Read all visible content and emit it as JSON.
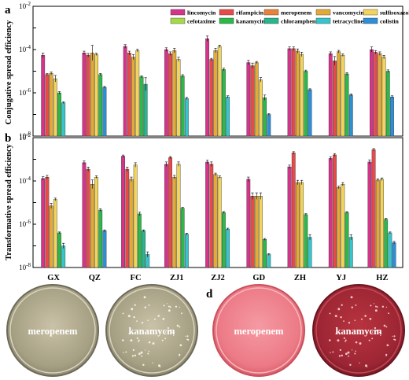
{
  "panels": {
    "a": {
      "letter": "a",
      "ylabel": "Conjugative spread efficiency"
    },
    "b": {
      "letter": "b",
      "ylabel": "Transformative spread efficiency"
    },
    "c": {
      "letter": "c",
      "plates": [
        "meropenem",
        "kanamycin"
      ]
    },
    "d": {
      "letter": "d",
      "plates": [
        "meropenem",
        "kanamycin"
      ]
    }
  },
  "colors": {
    "lincomycin": "#d6338a",
    "rifampicin": "#e84a4a",
    "meropenem": "#e8823a",
    "vancomycin": "#e3aa36",
    "sulfisoxazole": "#f2d45c",
    "cefotaxime": "#a6d94a",
    "kanamycin": "#2db84a",
    "chloramphenicol": "#28b58f",
    "tetracycline": "#36c5cc",
    "colistin": "#2e8fd6"
  },
  "chart_data": [
    {
      "type": "bar",
      "panel": "a",
      "y_scale": "log",
      "ylim": [
        1e-08,
        0.01
      ],
      "yticks": [
        "10^-8",
        "10^-6",
        "10^-4",
        "10^-2"
      ],
      "ylabel": "Conjugative spread efficiency",
      "categories": [
        "GX",
        "QZ",
        "FC",
        "ZJ1",
        "ZJ2",
        "GD",
        "ZH",
        "YJ",
        "HZ"
      ],
      "legend_placement": "top-right",
      "series": [
        {
          "name": "lincomycin",
          "values": [
            5.5e-05,
            7e-05,
            0.00014,
            0.0001,
            0.00032,
            2.5e-05,
            0.00011,
            6.5e-05,
            0.0001
          ],
          "errors": [
            0.1,
            0.08,
            0.08,
            0.08,
            0.12,
            0.1,
            0.08,
            0.08,
            0.12
          ]
        },
        {
          "name": "rifampicin",
          "values": [
            7e-06,
            5.5e-05,
            7e-05,
            6.5e-05,
            3.5e-05,
            1.8e-05,
            0.00011,
            3e-05,
            7.5e-05
          ],
          "errors": [
            0.05,
            0.08,
            0.08,
            0.08,
            0.05,
            0.12,
            0.08,
            0.2,
            0.08
          ]
        },
        {
          "name": "meropenem",
          "values": [
            null,
            null,
            null,
            null,
            null,
            null,
            null,
            null,
            null
          ]
        },
        {
          "name": "vancomycin",
          "values": [
            8e-06,
            7e-05,
            4.5e-05,
            9e-05,
            9e-05,
            2.5e-05,
            8.5e-05,
            8e-05,
            6.5e-05
          ],
          "errors": [
            0.06,
            0.35,
            0.12,
            0.1,
            0.1,
            0.05,
            0.1,
            0.06,
            0.08
          ]
        },
        {
          "name": "sulfisoxazole",
          "values": [
            4.5e-06,
            6e-05,
            9e-05,
            3.5e-05,
            0.00014,
            4e-06,
            6e-05,
            5.5e-05,
            4.5e-05
          ],
          "errors": [
            0.15,
            0.05,
            0.06,
            0.1,
            0.06,
            0.1,
            0.1,
            0.06,
            0.08
          ]
        },
        {
          "name": "cefotaxime",
          "values": [
            null,
            null,
            null,
            null,
            null,
            null,
            null,
            null,
            null
          ]
        },
        {
          "name": "kanamycin",
          "values": [
            1e-06,
            7e-06,
            5.5e-06,
            6e-06,
            1.2e-05,
            6e-07,
            1e-05,
            7.5e-06,
            1e-05
          ],
          "errors": [
            0.06,
            0.05,
            0.05,
            0.06,
            0.06,
            0.12,
            0.05,
            0.06,
            0.06
          ]
        },
        {
          "name": "chloramphenicol",
          "values": [
            null,
            null,
            2.5e-06,
            null,
            null,
            null,
            null,
            null,
            null
          ],
          "errors": [
            0,
            0,
            0.3,
            0,
            0,
            0,
            0,
            0,
            0
          ]
        },
        {
          "name": "tetracycline",
          "values": [
            3.5e-07,
            null,
            null,
            5.5e-07,
            6.5e-07,
            null,
            null,
            null,
            null
          ],
          "errors": [
            0.04,
            0,
            0,
            0.05,
            0.05,
            0,
            0,
            0,
            0
          ]
        },
        {
          "name": "colistin",
          "values": [
            null,
            1.8e-06,
            null,
            null,
            null,
            1e-07,
            1.4e-06,
            8e-07,
            6.5e-07
          ],
          "errors": [
            0,
            0.04,
            0,
            0,
            0,
            0.04,
            0.04,
            0.05,
            0.05
          ]
        }
      ]
    },
    {
      "type": "bar",
      "panel": "b",
      "y_scale": "log",
      "ylim": [
        1e-08,
        0.01
      ],
      "yticks": [
        "10^-8",
        "10^-6",
        "10^-4",
        "10^-2"
      ],
      "ylabel": "Transformative spread efficiency",
      "categories": [
        "GX",
        "QZ",
        "FC",
        "ZJ1",
        "ZJ2",
        "GD",
        "ZH",
        "YJ",
        "HZ"
      ],
      "series": [
        {
          "name": "lincomycin",
          "values": [
            0.00013,
            0.0007,
            0.0014,
            0.0006,
            0.00075,
            0.00012,
            0.00045,
            0.0011,
            0.00075
          ],
          "errors": [
            0.08,
            0.08,
            0.05,
            0.1,
            0.08,
            0.1,
            0.08,
            0.08,
            0.1
          ]
        },
        {
          "name": "rifampicin",
          "values": [
            0.00015,
            0.00035,
            0.00035,
            0.0012,
            0.0006,
            2e-05,
            0.002,
            0.0016,
            0.0028
          ],
          "errors": [
            0.08,
            0.1,
            0.1,
            0.05,
            0.1,
            0.15,
            0.05,
            0.06,
            0.05
          ]
        },
        {
          "name": "meropenem",
          "values": [
            null,
            null,
            null,
            null,
            null,
            null,
            null,
            null,
            null
          ]
        },
        {
          "name": "vancomycin",
          "values": [
            7e-06,
            7e-05,
            0.00012,
            0.00015,
            0.0002,
            2e-05,
            8.5e-05,
            5e-05,
            0.00011
          ],
          "errors": [
            0.12,
            0.2,
            0.1,
            0.08,
            0.06,
            0.15,
            0.1,
            0.06,
            0.06
          ]
        },
        {
          "name": "sulfisoxazole",
          "values": [
            1.4e-05,
            0.00015,
            0.00055,
            0.0006,
            0.00015,
            2e-05,
            8.5e-05,
            7e-05,
            0.00012
          ],
          "errors": [
            0.06,
            0.06,
            0.1,
            0.1,
            0.06,
            0.15,
            0.1,
            0.08,
            0.06
          ]
        },
        {
          "name": "cefotaxime",
          "values": [
            null,
            null,
            null,
            null,
            null,
            null,
            null,
            null,
            null
          ]
        },
        {
          "name": "kanamycin",
          "values": [
            4e-07,
            4.5e-06,
            3e-06,
            5.5e-06,
            3.5e-06,
            2e-07,
            2.8e-06,
            3.5e-06,
            1.7e-06
          ],
          "errors": [
            0.04,
            0.06,
            0.08,
            0.04,
            0.04,
            0.04,
            0.04,
            0.04,
            0.04
          ]
        },
        {
          "name": "chloramphenicol",
          "values": [
            null,
            null,
            5e-07,
            null,
            null,
            null,
            null,
            null,
            null
          ],
          "errors": [
            0,
            0,
            0.04,
            0,
            0,
            0,
            0,
            0,
            0
          ]
        },
        {
          "name": "tetracycline",
          "values": [
            1e-07,
            null,
            4e-08,
            3.5e-07,
            6e-07,
            4e-08,
            2.5e-07,
            2.5e-07,
            4e-07
          ],
          "errors": [
            0.12,
            0,
            0.12,
            0.04,
            0.04,
            0.04,
            0.12,
            0.12,
            0.04
          ]
        },
        {
          "name": "colistin",
          "values": [
            null,
            5e-07,
            null,
            null,
            null,
            null,
            null,
            null,
            1.4e-07
          ],
          "errors": [
            0,
            0.04,
            0,
            0,
            0,
            0,
            0,
            0,
            0.06
          ]
        }
      ]
    }
  ]
}
